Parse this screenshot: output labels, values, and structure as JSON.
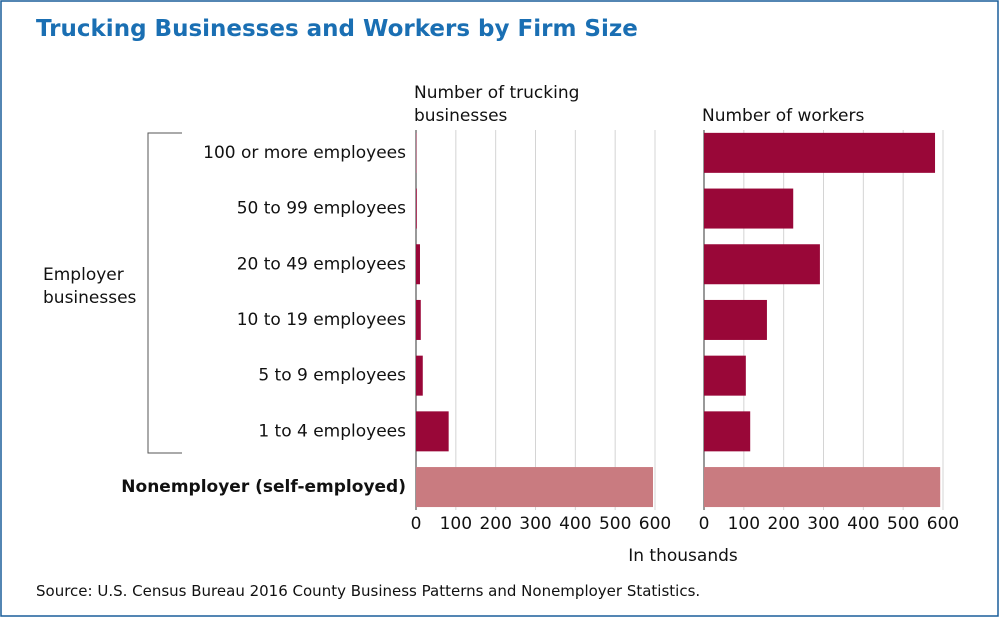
{
  "chart_data": {
    "type": "bar",
    "title": "Trucking Businesses and Workers by Firm Size",
    "group_label": "Employer businesses",
    "x_label": "In thousands",
    "source": "Source: U.S. Census Bureau 2016 County Business Patterns and Nonemployer Statistics.",
    "categories": [
      "100 or more employees",
      "50 to 99 employees",
      "20 to 49 employees",
      "10 to 19 employees",
      "5 to 9 employees",
      "1 to 4 employees",
      "Nonemployer (self-employed)"
    ],
    "colors": [
      "#990738",
      "#990738",
      "#990738",
      "#990738",
      "#990738",
      "#990738",
      "#c97b80"
    ],
    "grid": true,
    "panels": [
      {
        "title": "Number of trucking businesses",
        "values": [
          1,
          2,
          10,
          12,
          17,
          82,
          595
        ],
        "xlim": [
          0,
          600
        ],
        "xticks": [
          0,
          100,
          200,
          300,
          400,
          500,
          600
        ]
      },
      {
        "title": "Number of workers",
        "values": [
          580,
          224,
          291,
          158,
          105,
          116,
          593
        ],
        "xlim": [
          0,
          600
        ],
        "xticks": [
          0,
          100,
          200,
          300,
          400,
          500,
          600
        ]
      }
    ]
  }
}
